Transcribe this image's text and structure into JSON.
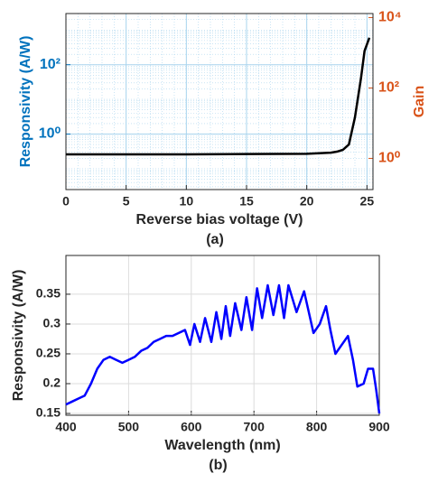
{
  "chart_data": [
    {
      "type": "line",
      "xlabel": "Reverse bias voltage (V)",
      "ylabel": "Responsivity (A/W)",
      "y2label": "Gain",
      "caption": "(a)",
      "x": [
        0,
        5,
        10,
        15,
        20,
        21,
        22,
        22.5,
        23,
        23.5,
        24,
        24.5,
        24.8,
        25.2
      ],
      "values": [
        0.26,
        0.26,
        0.26,
        0.265,
        0.27,
        0.28,
        0.29,
        0.31,
        0.35,
        0.5,
        3,
        40,
        250,
        600
      ],
      "color": "#000000",
      "ycolor": "#0072bd",
      "y2color": "#d95319",
      "xlim": [
        0,
        25.5
      ],
      "xticks": [
        0,
        5,
        10,
        15,
        20,
        25
      ],
      "ylog": true,
      "ylim": [
        0.025,
        3000
      ],
      "yticks": [
        {
          "value": 1,
          "label": "10⁰"
        },
        {
          "value": 100,
          "label": "10²"
        }
      ],
      "y2log": true,
      "y2lim": [
        0.13,
        13000
      ],
      "y2ticks": [
        {
          "value": 1,
          "label": "10⁰"
        },
        {
          "value": 100,
          "label": "10²"
        },
        {
          "value": 10000,
          "label": "10⁴"
        }
      ],
      "grid": true,
      "minor_grid": true
    },
    {
      "type": "line",
      "xlabel": "Wavelength (nm)",
      "ylabel": "Responsivity (A/W)",
      "caption": "(b)",
      "x": [
        400,
        410,
        420,
        430,
        440,
        450,
        460,
        470,
        480,
        490,
        500,
        510,
        520,
        530,
        540,
        550,
        560,
        570,
        580,
        590,
        598,
        605,
        614,
        622,
        632,
        640,
        648,
        655,
        662,
        670,
        680,
        688,
        697,
        705,
        713,
        722,
        731,
        740,
        748,
        755,
        768,
        780,
        795,
        805,
        815,
        822,
        830,
        840,
        850,
        858,
        865,
        875,
        882,
        890,
        895,
        900
      ],
      "values": [
        0.165,
        0.17,
        0.175,
        0.18,
        0.2,
        0.225,
        0.24,
        0.245,
        0.24,
        0.235,
        0.24,
        0.245,
        0.255,
        0.26,
        0.27,
        0.275,
        0.28,
        0.28,
        0.285,
        0.29,
        0.265,
        0.3,
        0.27,
        0.31,
        0.27,
        0.32,
        0.275,
        0.33,
        0.28,
        0.335,
        0.29,
        0.345,
        0.29,
        0.36,
        0.31,
        0.365,
        0.315,
        0.365,
        0.31,
        0.365,
        0.32,
        0.355,
        0.285,
        0.3,
        0.33,
        0.29,
        0.25,
        0.265,
        0.28,
        0.24,
        0.195,
        0.2,
        0.225,
        0.225,
        0.19,
        0.15
      ],
      "color": "#0000ff",
      "ycolor": "#262626",
      "xlim": [
        400,
        900
      ],
      "xticks": [
        400,
        500,
        600,
        700,
        800,
        900
      ],
      "ylim": [
        0.147,
        0.415
      ],
      "yticks": [
        0.15,
        0.2,
        0.25,
        0.3,
        0.35
      ],
      "grid": true
    }
  ]
}
